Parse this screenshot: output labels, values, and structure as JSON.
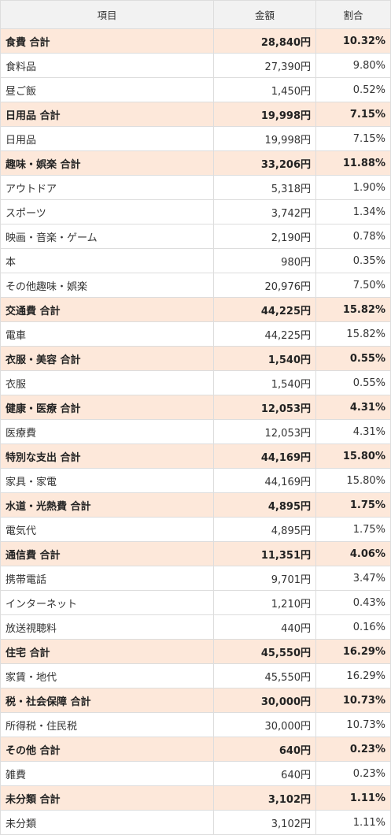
{
  "headers": {
    "item": "項目",
    "amount": "金額",
    "ratio": "割合"
  },
  "rows": [
    {
      "type": "total",
      "name": "食費 合計",
      "amount": "28,840円",
      "ratio": "10.32%"
    },
    {
      "type": "item",
      "name": "食料品",
      "amount": "27,390円",
      "ratio": "9.80%"
    },
    {
      "type": "item",
      "name": "昼ご飯",
      "amount": "1,450円",
      "ratio": "0.52%"
    },
    {
      "type": "total",
      "name": "日用品 合計",
      "amount": "19,998円",
      "ratio": "7.15%"
    },
    {
      "type": "item",
      "name": "日用品",
      "amount": "19,998円",
      "ratio": "7.15%"
    },
    {
      "type": "total",
      "name": "趣味・娯楽 合計",
      "amount": "33,206円",
      "ratio": "11.88%"
    },
    {
      "type": "item",
      "name": "アウトドア",
      "amount": "5,318円",
      "ratio": "1.90%"
    },
    {
      "type": "item",
      "name": "スポーツ",
      "amount": "3,742円",
      "ratio": "1.34%"
    },
    {
      "type": "item",
      "name": "映画・音楽・ゲーム",
      "amount": "2,190円",
      "ratio": "0.78%"
    },
    {
      "type": "item",
      "name": "本",
      "amount": "980円",
      "ratio": "0.35%"
    },
    {
      "type": "item",
      "name": "その他趣味・娯楽",
      "amount": "20,976円",
      "ratio": "7.50%"
    },
    {
      "type": "total",
      "name": "交通費 合計",
      "amount": "44,225円",
      "ratio": "15.82%"
    },
    {
      "type": "item",
      "name": "電車",
      "amount": "44,225円",
      "ratio": "15.82%"
    },
    {
      "type": "total",
      "name": "衣服・美容 合計",
      "amount": "1,540円",
      "ratio": "0.55%"
    },
    {
      "type": "item",
      "name": "衣服",
      "amount": "1,540円",
      "ratio": "0.55%"
    },
    {
      "type": "total",
      "name": "健康・医療 合計",
      "amount": "12,053円",
      "ratio": "4.31%"
    },
    {
      "type": "item",
      "name": "医療費",
      "amount": "12,053円",
      "ratio": "4.31%"
    },
    {
      "type": "total",
      "name": "特別な支出 合計",
      "amount": "44,169円",
      "ratio": "15.80%"
    },
    {
      "type": "item",
      "name": "家具・家電",
      "amount": "44,169円",
      "ratio": "15.80%"
    },
    {
      "type": "total",
      "name": "水道・光熱費 合計",
      "amount": "4,895円",
      "ratio": "1.75%"
    },
    {
      "type": "item",
      "name": "電気代",
      "amount": "4,895円",
      "ratio": "1.75%"
    },
    {
      "type": "total",
      "name": "通信費 合計",
      "amount": "11,351円",
      "ratio": "4.06%"
    },
    {
      "type": "item",
      "name": "携帯電話",
      "amount": "9,701円",
      "ratio": "3.47%"
    },
    {
      "type": "item",
      "name": "インターネット",
      "amount": "1,210円",
      "ratio": "0.43%"
    },
    {
      "type": "item",
      "name": "放送視聴料",
      "amount": "440円",
      "ratio": "0.16%"
    },
    {
      "type": "total",
      "name": "住宅 合計",
      "amount": "45,550円",
      "ratio": "16.29%"
    },
    {
      "type": "item",
      "name": "家賃・地代",
      "amount": "45,550円",
      "ratio": "16.29%"
    },
    {
      "type": "total",
      "name": "税・社会保障 合計",
      "amount": "30,000円",
      "ratio": "10.73%"
    },
    {
      "type": "item",
      "name": "所得税・住民税",
      "amount": "30,000円",
      "ratio": "10.73%"
    },
    {
      "type": "total",
      "name": "その他 合計",
      "amount": "640円",
      "ratio": "0.23%"
    },
    {
      "type": "item",
      "name": "雑費",
      "amount": "640円",
      "ratio": "0.23%"
    },
    {
      "type": "total",
      "name": "未分類 合計",
      "amount": "3,102円",
      "ratio": "1.11%"
    },
    {
      "type": "item",
      "name": "未分類",
      "amount": "3,102円",
      "ratio": "1.11%"
    }
  ]
}
